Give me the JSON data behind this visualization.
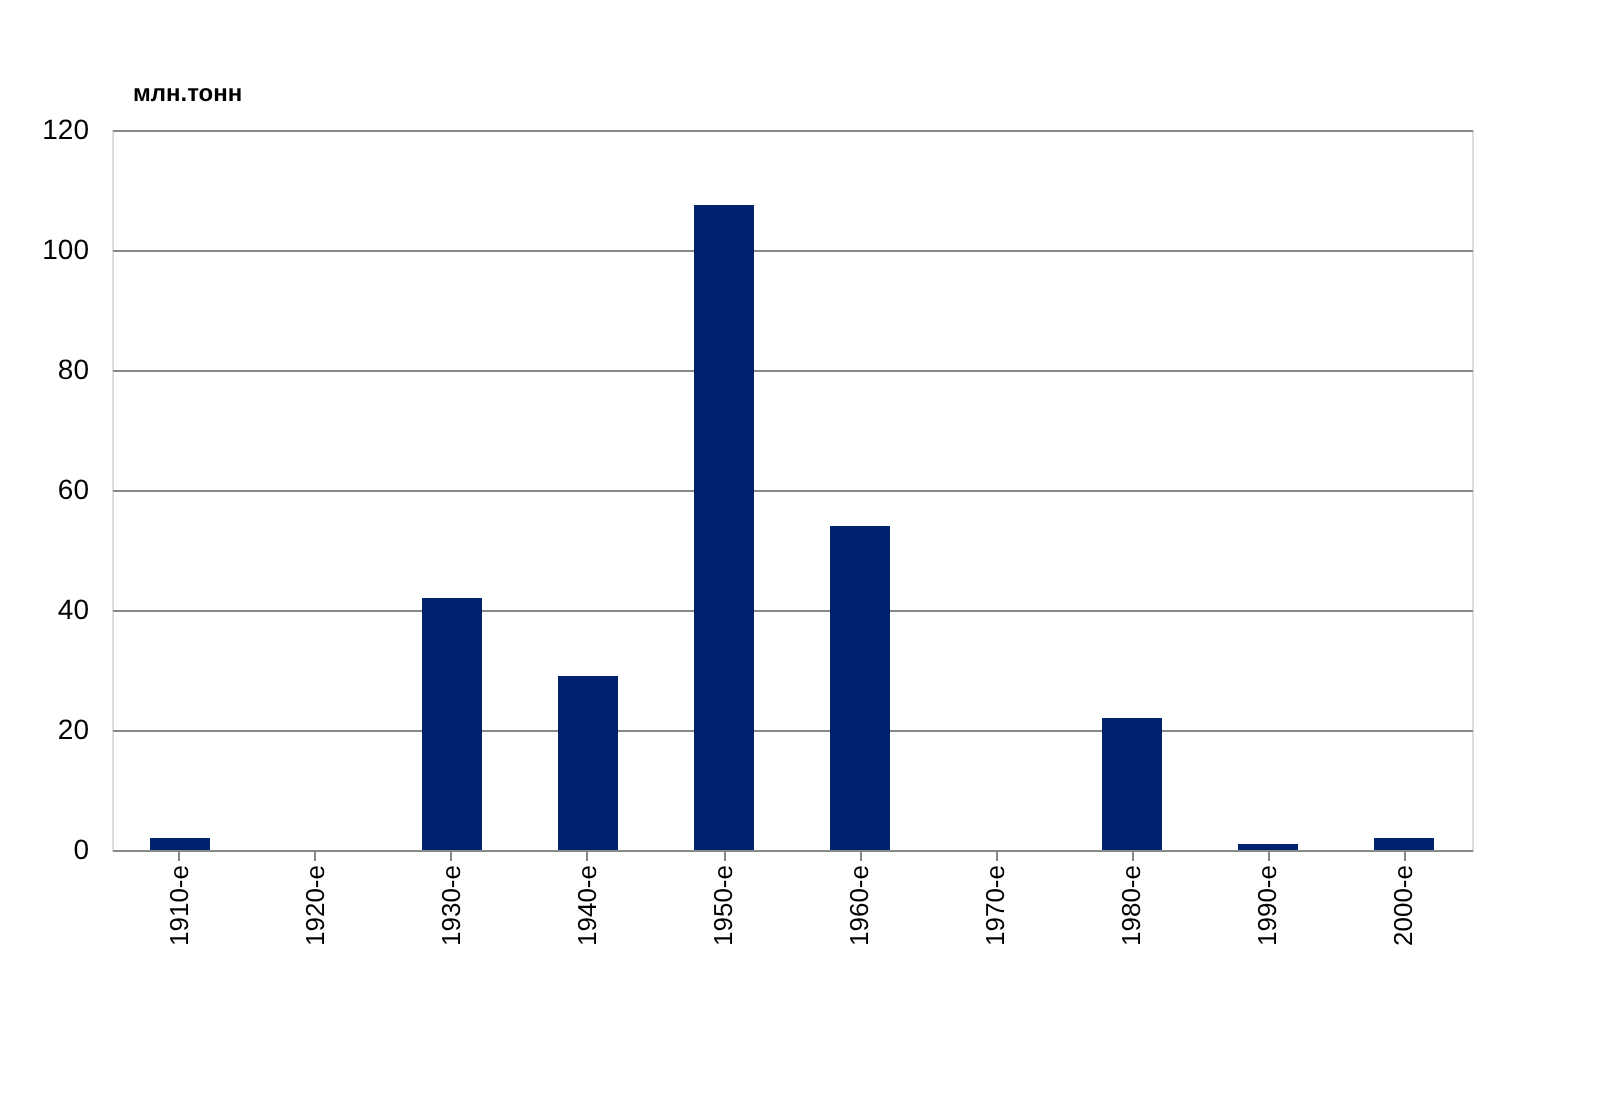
{
  "chart_data": {
    "type": "bar",
    "ylabel": "млн.тонн",
    "categories": [
      "1910-е",
      "1920-е",
      "1930-е",
      "1940-е",
      "1950-е",
      "1960-е",
      "1970-е",
      "1980-е",
      "1990-е",
      "2000-е"
    ],
    "values": [
      2,
      0,
      42,
      29,
      107.5,
      54,
      0,
      22,
      1,
      2
    ],
    "color": "#002070",
    "ylim": [
      0,
      120
    ],
    "yticks": [
      0,
      20,
      40,
      60,
      80,
      100,
      120
    ],
    "grid": "y"
  }
}
